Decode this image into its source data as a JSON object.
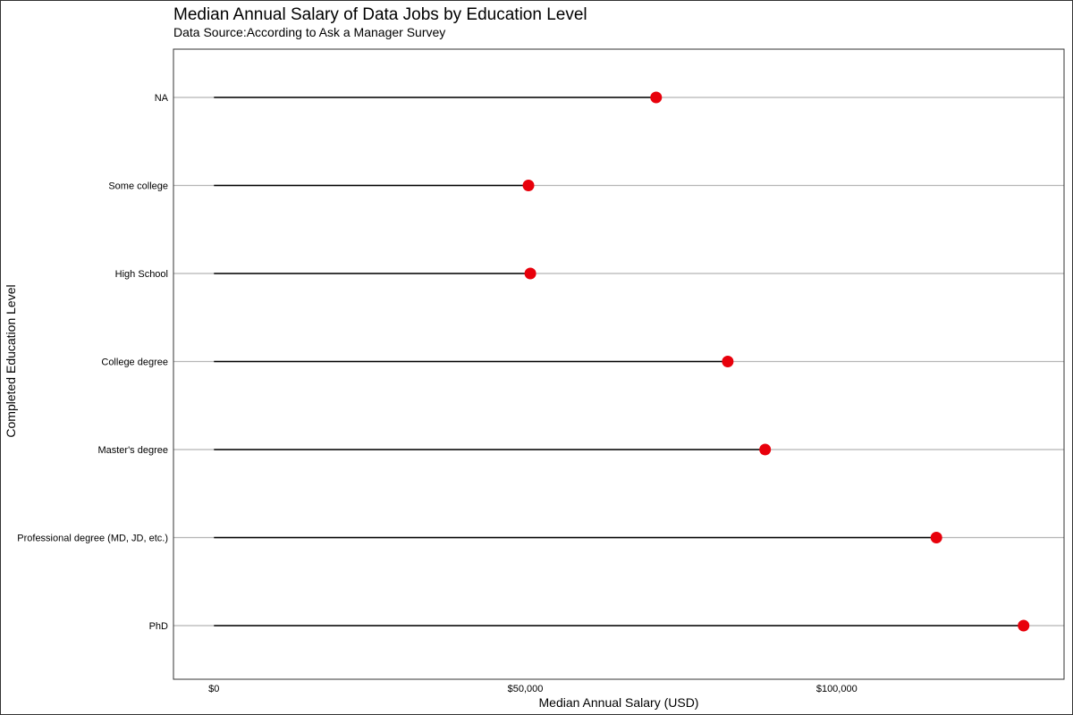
{
  "chart_data": {
    "type": "lollipop",
    "title": "Median Annual Salary of Data Jobs by Education Level",
    "subtitle": "Data Source:According to Ask a Manager Survey",
    "xlabel": "Median Annual Salary (USD)",
    "ylabel": "Completed Education Level",
    "categories": [
      "NA",
      "Some college",
      "High School",
      "College degree",
      "Master's degree",
      "Professional degree (MD, JD, etc.)",
      "PhD"
    ],
    "values": [
      71000,
      50500,
      50800,
      82500,
      88500,
      116000,
      130000
    ],
    "xlim": [
      -6500,
      136500
    ],
    "xticks": [
      0,
      50000,
      100000
    ],
    "xtick_labels": [
      "$0",
      "$50,000",
      "$100,000"
    ],
    "grid": "horizontal major",
    "colors": {
      "point": "#e8000b",
      "stem": "#000000",
      "grid": "#b5b5b5",
      "panel_border": "#333333"
    }
  }
}
